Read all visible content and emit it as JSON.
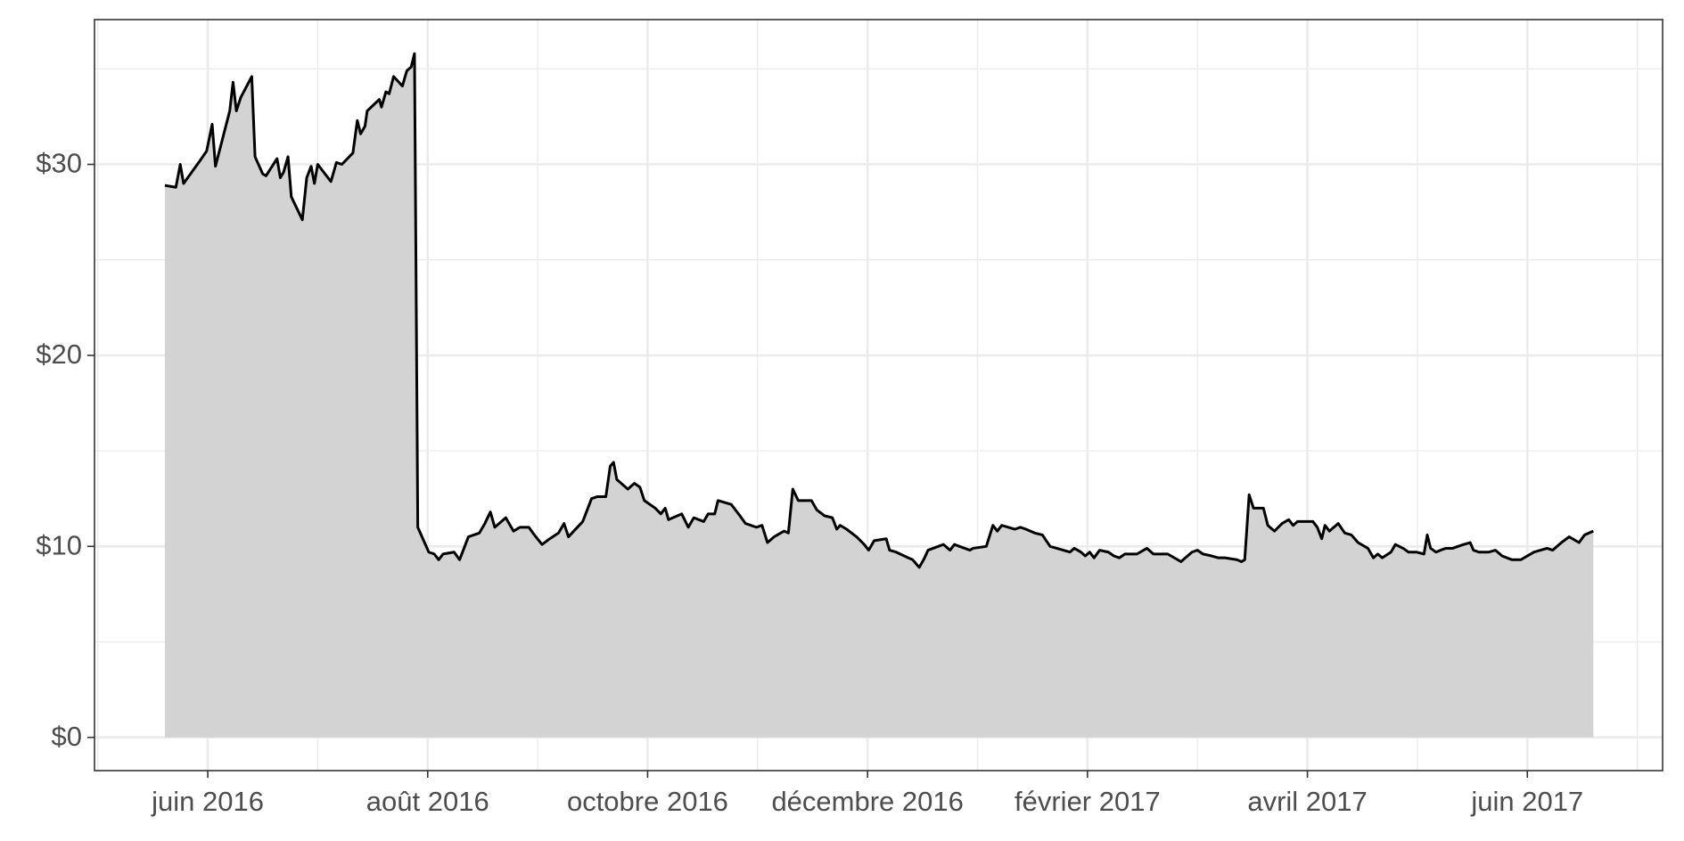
{
  "chart_data": {
    "type": "area",
    "x": [
      -0.39,
      -0.29,
      -0.25,
      -0.22,
      -0.07,
      -0.01,
      0.04,
      0.07,
      0.2,
      0.23,
      0.26,
      0.3,
      0.4,
      0.43,
      0.5,
      0.53,
      0.63,
      0.66,
      0.69,
      0.73,
      0.76,
      0.86,
      0.9,
      0.94,
      0.97,
      1.0,
      1.12,
      1.17,
      1.22,
      1.32,
      1.36,
      1.39,
      1.43,
      1.45,
      1.56,
      1.58,
      1.62,
      1.65,
      1.69,
      1.77,
      1.81,
      1.85,
      1.88,
      1.91,
      2.01,
      2.06,
      2.1,
      2.14,
      2.24,
      2.29,
      2.37,
      2.47,
      2.52,
      2.57,
      2.61,
      2.71,
      2.78,
      2.84,
      2.92,
      2.97,
      3.04,
      3.11,
      3.19,
      3.24,
      3.28,
      3.41,
      3.49,
      3.54,
      3.62,
      3.66,
      3.69,
      3.72,
      3.82,
      3.88,
      3.93,
      3.97,
      4.07,
      4.12,
      4.16,
      4.19,
      4.31,
      4.37,
      4.42,
      4.51,
      4.55,
      4.61,
      4.64,
      4.76,
      4.84,
      4.89,
      4.99,
      5.04,
      5.09,
      5.15,
      5.24,
      5.28,
      5.32,
      5.37,
      5.49,
      5.54,
      5.61,
      5.68,
      5.72,
      5.75,
      5.81,
      5.9,
      5.97,
      6.01,
      6.06,
      6.17,
      6.2,
      6.26,
      6.37,
      6.41,
      6.47,
      6.51,
      6.55,
      6.69,
      6.75,
      6.79,
      6.93,
      6.96,
      7.08,
      7.14,
      7.18,
      7.22,
      7.34,
      7.39,
      7.44,
      7.52,
      7.59,
      7.66,
      7.78,
      7.84,
      7.88,
      7.94,
      7.98,
      8.02,
      8.06,
      8.11,
      8.19,
      8.24,
      8.29,
      8.34,
      8.45,
      8.54,
      8.6,
      8.73,
      8.85,
      8.95,
      9.0,
      9.05,
      9.13,
      9.19,
      9.25,
      9.36,
      9.4,
      9.43,
      9.47,
      9.51,
      9.6,
      9.64,
      9.7,
      9.77,
      9.83,
      9.87,
      9.91,
      10.05,
      10.09,
      10.13,
      10.16,
      10.2,
      10.28,
      10.34,
      10.4,
      10.46,
      10.55,
      10.6,
      10.64,
      10.68,
      10.76,
      10.8,
      10.87,
      10.92,
      10.99,
      11.06,
      11.09,
      11.12,
      11.17,
      11.21,
      11.26,
      11.32,
      11.42,
      11.48,
      11.51,
      11.56,
      11.65,
      11.71,
      11.77,
      11.86,
      11.94,
      12.0,
      12.06,
      12.18,
      12.23,
      12.31,
      12.38,
      12.47,
      12.52,
      12.6
    ],
    "values": [
      28.9,
      28.8,
      30.0,
      29.0,
      30.2,
      30.7,
      32.1,
      29.9,
      32.8,
      34.3,
      32.8,
      33.5,
      34.6,
      30.4,
      29.5,
      29.4,
      30.3,
      29.3,
      29.6,
      30.4,
      28.3,
      27.1,
      29.3,
      29.9,
      29.0,
      30.0,
      29.1,
      30.1,
      30.0,
      30.6,
      32.3,
      31.6,
      32.0,
      32.8,
      33.4,
      33.0,
      33.8,
      33.7,
      34.6,
      34.1,
      34.9,
      35.1,
      35.8,
      11.0,
      9.7,
      9.6,
      9.3,
      9.6,
      9.7,
      9.3,
      10.5,
      10.7,
      11.2,
      11.8,
      11.0,
      11.5,
      10.8,
      11.0,
      11.0,
      10.6,
      10.1,
      10.4,
      10.7,
      11.2,
      10.5,
      11.3,
      12.5,
      12.6,
      12.6,
      14.2,
      14.4,
      13.5,
      13.0,
      13.3,
      13.1,
      12.4,
      12.0,
      11.7,
      12.0,
      11.4,
      11.7,
      11.0,
      11.5,
      11.3,
      11.7,
      11.7,
      12.4,
      12.2,
      11.6,
      11.2,
      11.0,
      11.1,
      10.2,
      10.5,
      10.8,
      10.7,
      13.0,
      12.4,
      12.4,
      11.9,
      11.6,
      11.5,
      10.9,
      11.1,
      10.9,
      10.5,
      10.1,
      9.8,
      10.3,
      10.4,
      9.8,
      9.7,
      9.4,
      9.3,
      8.9,
      9.3,
      9.8,
      10.1,
      9.8,
      10.1,
      9.8,
      9.9,
      10.0,
      11.1,
      10.8,
      11.1,
      10.9,
      11.0,
      10.9,
      10.7,
      10.6,
      10.0,
      9.8,
      9.7,
      9.9,
      9.7,
      9.5,
      9.7,
      9.4,
      9.8,
      9.7,
      9.5,
      9.4,
      9.6,
      9.6,
      9.9,
      9.6,
      9.6,
      9.2,
      9.7,
      9.8,
      9.6,
      9.5,
      9.4,
      9.4,
      9.3,
      9.2,
      9.3,
      12.7,
      12.0,
      12.0,
      11.1,
      10.8,
      11.2,
      11.4,
      11.1,
      11.3,
      11.3,
      11.0,
      10.4,
      11.1,
      10.8,
      11.2,
      10.7,
      10.6,
      10.2,
      9.9,
      9.4,
      9.6,
      9.4,
      9.7,
      10.1,
      9.9,
      9.7,
      9.7,
      9.6,
      10.6,
      9.9,
      9.7,
      9.8,
      9.9,
      9.9,
      10.1,
      10.2,
      9.8,
      9.7,
      9.7,
      9.8,
      9.5,
      9.3,
      9.3,
      9.5,
      9.7,
      9.9,
      9.8,
      10.2,
      10.5,
      10.2,
      10.6,
      10.8
    ],
    "line_color": "#000000",
    "fill_color": "#d3d3d3",
    "xlim": [
      -1.03,
      13.23
    ],
    "ylim": [
      -1.74,
      37.58
    ],
    "xticks": [
      {
        "value": 0,
        "label": "juin 2016"
      },
      {
        "value": 2,
        "label": "août 2016"
      },
      {
        "value": 4,
        "label": "octobre 2016"
      },
      {
        "value": 6,
        "label": "décembre 2016"
      },
      {
        "value": 8,
        "label": "février 2017"
      },
      {
        "value": 10,
        "label": "avril 2017"
      },
      {
        "value": 12,
        "label": "juin 2017"
      }
    ],
    "yticks": [
      {
        "value": 0,
        "label": "$0"
      },
      {
        "value": 10,
        "label": "$10"
      },
      {
        "value": 20,
        "label": "$20"
      },
      {
        "value": 30,
        "label": "$30"
      }
    ],
    "grid": true
  }
}
